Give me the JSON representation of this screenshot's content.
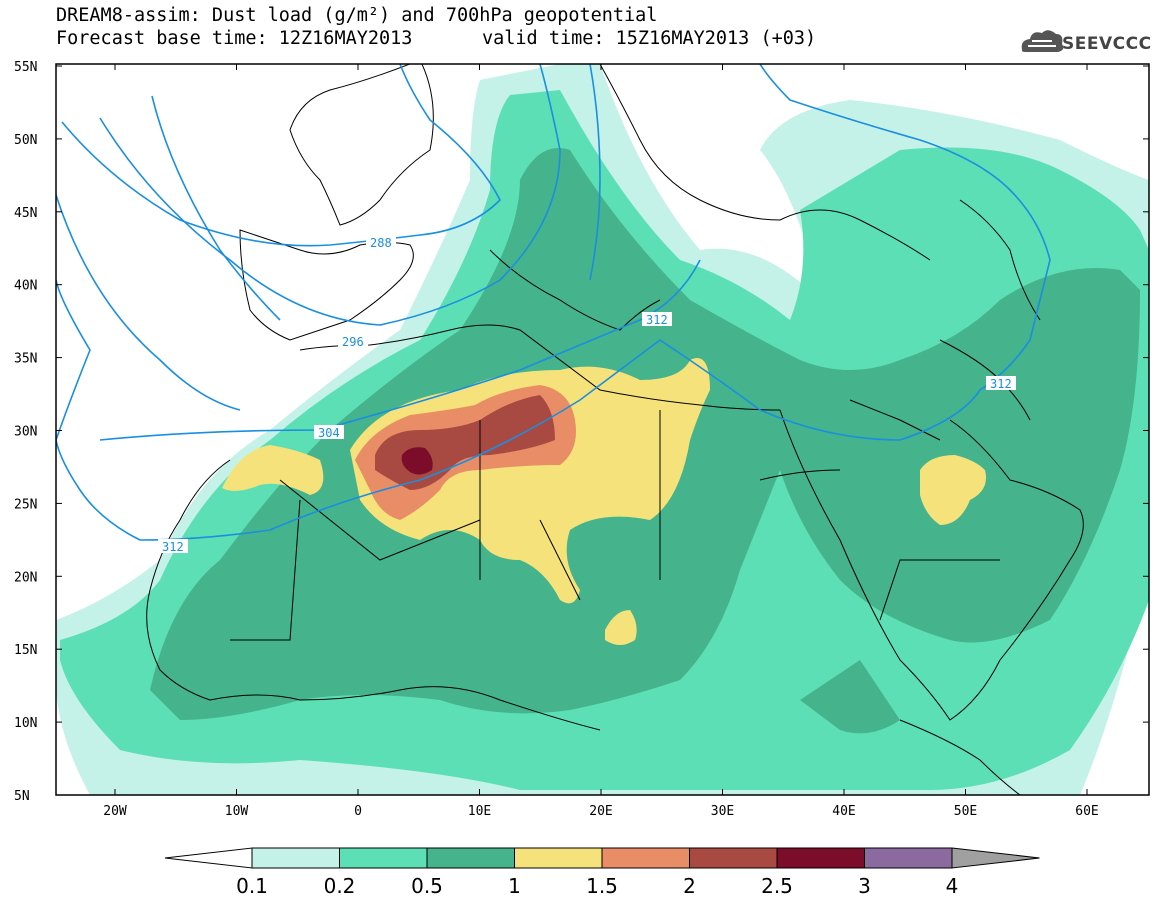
{
  "title": {
    "line1": "DREAM8-assim: Dust load (g/m²) and 700hPa geopotential",
    "line2": "Forecast base time: 12Z16MAY2013",
    "valid": "valid time: 15Z16MAY2013 (+03)"
  },
  "logo": {
    "text": "SEEVCCC",
    "icon": "cloud-icon"
  },
  "map": {
    "lat_labels": [
      "55N",
      "50N",
      "45N",
      "40N",
      "35N",
      "30N",
      "25N",
      "20N",
      "15N",
      "10N",
      "5N"
    ],
    "lon_labels": [
      "20W",
      "10W",
      "0",
      "10E",
      "20E",
      "30E",
      "40E",
      "50E",
      "60E"
    ],
    "contour_labels": [
      "288",
      "296",
      "304",
      "312",
      "312",
      "312"
    ]
  },
  "colorbar": {
    "colors": [
      "#c4f1e8",
      "#5cdfb5",
      "#45b38b",
      "#f5e27a",
      "#e98d66",
      "#a94a42",
      "#7b0c2a",
      "#8b6aa0",
      "#a0a0a0"
    ],
    "labels": [
      "0.1",
      "0.2",
      "0.5",
      "1",
      "1.5",
      "2",
      "2.5",
      "3",
      "4"
    ]
  }
}
